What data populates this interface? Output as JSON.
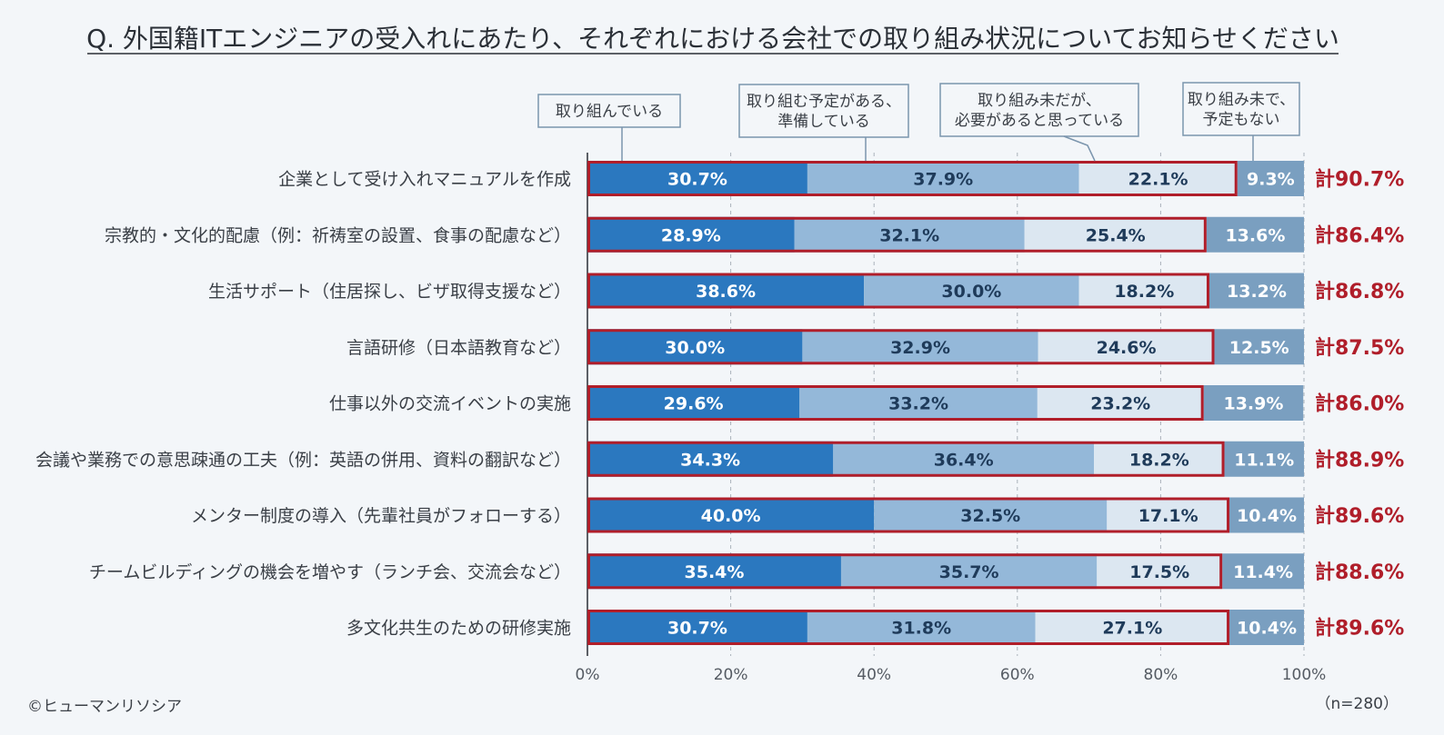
{
  "title": "Q. 外国籍ITエンジニアの受入れにあたり、それぞれにおける会社での取り組み状況についてお知らせください",
  "footer": {
    "credit": "©ヒューマンリソシア",
    "sample": "（n=280）"
  },
  "colors": {
    "series": [
      "#2b78bf",
      "#94b8d9",
      "#dce7f1",
      "#7a9fc0"
    ],
    "series_text": [
      "#ffffff",
      "#1f3b5a",
      "#1f3b5a",
      "#ffffff"
    ],
    "highlight": "#b01e2a",
    "background": "#f3f6f9"
  },
  "chart_data": {
    "type": "bar",
    "orientation": "horizontal",
    "stacked": true,
    "title": "Q. 外国籍ITエンジニアの受入れにあたり、それぞれにおける会社での取り組み状況についてお知らせください",
    "xlabel": "",
    "ylabel": "",
    "xlim": [
      0,
      100
    ],
    "x_ticks": [
      "0%",
      "20%",
      "40%",
      "60%",
      "80%",
      "100%"
    ],
    "categories": [
      "企業として受け入れマニュアルを作成",
      "宗教的・文化的配慮（例：祈祷室の設置、食事の配慮など）",
      "生活サポート（住居探し、ビザ取得支援など）",
      "言語研修（日本語教育など）",
      "仕事以外の交流イベントの実施",
      "会議や業務での意思疎通の工夫（例：英語の併用、資料の翻訳など）",
      "メンター制度の導入（先輩社員がフォローする）",
      "チームビルディングの機会を増やす（ランチ会、交流会など）",
      "多文化共生のための研修実施"
    ],
    "series": [
      {
        "name": "取り組んでいる",
        "values": [
          30.7,
          28.9,
          38.6,
          30.0,
          29.6,
          34.3,
          40.0,
          35.4,
          30.7
        ]
      },
      {
        "name": "取り組む予定がある、準備している",
        "values": [
          37.9,
          32.1,
          30.0,
          32.9,
          33.2,
          36.4,
          32.5,
          35.7,
          31.8
        ]
      },
      {
        "name": "取り組み未だが、必要があると思っている",
        "values": [
          22.1,
          25.4,
          18.2,
          24.6,
          23.2,
          18.2,
          17.1,
          17.5,
          27.1
        ]
      },
      {
        "name": "取り組み未で、予定もない",
        "values": [
          9.3,
          13.6,
          13.2,
          12.5,
          13.9,
          11.1,
          10.4,
          11.4,
          10.4
        ]
      }
    ],
    "value_labels": [
      [
        "30.7%",
        "37.9%",
        "22.1%",
        "9.3%"
      ],
      [
        "28.9%",
        "32.1%",
        "25.4%",
        "13.6%"
      ],
      [
        "38.6%",
        "30.0%",
        "18.2%",
        "13.2%"
      ],
      [
        "30.0%",
        "32.9%",
        "24.6%",
        "12.5%"
      ],
      [
        "29.6%",
        "33.2%",
        "23.2%",
        "13.9%"
      ],
      [
        "34.3%",
        "36.4%",
        "18.2%",
        "11.1%"
      ],
      [
        "40.0%",
        "32.5%",
        "17.1%",
        "10.4%"
      ],
      [
        "35.4%",
        "35.7%",
        "17.5%",
        "11.4%"
      ],
      [
        "30.7%",
        "31.8%",
        "27.1%",
        "10.4%"
      ]
    ],
    "totals": [
      "計90.7%",
      "計86.4%",
      "計86.8%",
      "計87.5%",
      "計86.0%",
      "計88.9%",
      "計89.6%",
      "計88.6%",
      "計89.6%"
    ],
    "legend": [
      [
        "取り組んでいる"
      ],
      [
        "取り組む予定がある、",
        "準備している"
      ],
      [
        "取り組み未だが、",
        "必要があると思っている"
      ],
      [
        "取り組み未で、",
        "予定もない"
      ]
    ],
    "grid": true
  }
}
